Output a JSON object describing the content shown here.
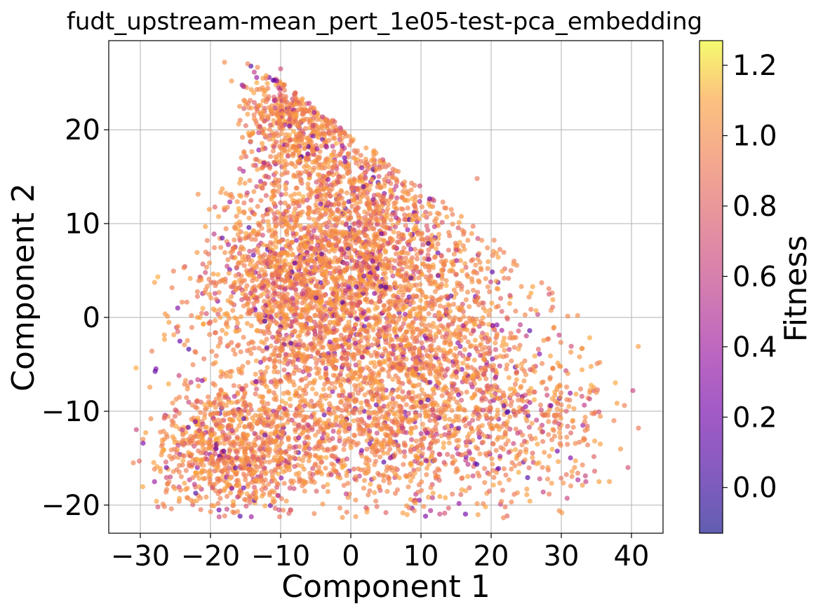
{
  "chart_data": {
    "type": "scatter",
    "title": "fudt_upstream-mean_pert_1e05-test-pca_embedding",
    "xlabel": "Component 1",
    "ylabel": "Component 2",
    "xlim": [
      -34.5,
      44.5
    ],
    "ylim": [
      -23.0,
      29.5
    ],
    "x_ticks": [
      -30,
      -20,
      -10,
      0,
      10,
      20,
      30,
      40
    ],
    "x_tick_labels": [
      "−30",
      "−20",
      "−10",
      "0",
      "10",
      "20",
      "30",
      "40"
    ],
    "y_ticks": [
      -20,
      -10,
      0,
      10,
      20
    ],
    "y_tick_labels": [
      "−20",
      "−10",
      "0",
      "10",
      "20"
    ],
    "grid": true,
    "colormap": "plasma",
    "point_alpha": 0.65,
    "colorbar": {
      "label": "Fitness",
      "range": [
        -0.13,
        1.27
      ],
      "ticks": [
        0.0,
        0.2,
        0.4,
        0.6,
        0.8,
        1.0,
        1.2
      ],
      "tick_labels": [
        "0.0",
        "0.2",
        "0.4",
        "0.6",
        "0.8",
        "1.0",
        "1.2"
      ]
    },
    "density_clusters": [
      {
        "center": [
          -8,
          22
        ],
        "spread": [
          4.5,
          3.5
        ],
        "weight": 0.1
      },
      {
        "center": [
          0,
          14
        ],
        "spread": [
          7,
          5
        ],
        "weight": 0.12
      },
      {
        "center": [
          -8,
          3
        ],
        "spread": [
          8,
          5.5
        ],
        "weight": 0.2
      },
      {
        "center": [
          5,
          2
        ],
        "spread": [
          9,
          7
        ],
        "weight": 0.22
      },
      {
        "center": [
          -17,
          -14
        ],
        "spread": [
          5.5,
          3.5
        ],
        "weight": 0.12
      },
      {
        "center": [
          3,
          -12
        ],
        "spread": [
          10,
          4.5
        ],
        "weight": 0.14
      },
      {
        "center": [
          18,
          -6
        ],
        "spread": [
          7,
          6
        ],
        "weight": 0.07
      },
      {
        "center": [
          28,
          -12
        ],
        "spread": [
          6,
          4
        ],
        "weight": 0.03
      }
    ],
    "points": [
      {
        "x": -31,
        "y": -15.5,
        "fitness": 0.95
      },
      {
        "x": -28.5,
        "y": -10.8,
        "fitness": 1.0
      },
      {
        "x": -27.5,
        "y": -20.2,
        "fitness": 0.7
      },
      {
        "x": -18,
        "y": 27.2,
        "fitness": 1.0
      },
      {
        "x": -17,
        "y": 25.2,
        "fitness": 1.05
      },
      {
        "x": 5,
        "y": -20.8,
        "fitness": 0.8
      },
      {
        "x": 41,
        "y": -11.8,
        "fitness": 0.9
      },
      {
        "x": 39.5,
        "y": -16,
        "fitness": 0.7
      },
      {
        "x": 37.5,
        "y": -11,
        "fitness": 0.95
      },
      {
        "x": 18,
        "y": 14.8,
        "fitness": 0.9
      },
      {
        "x": 11,
        "y": -8.8,
        "fitness": 0.05
      },
      {
        "x": -10,
        "y": 26.5,
        "fitness": 0.7
      },
      {
        "x": 33.5,
        "y": -17.5,
        "fitness": 0.6
      },
      {
        "x": 35,
        "y": -8,
        "fitness": 1.0
      },
      {
        "x": -22,
        "y": -9,
        "fitness": 0.8
      },
      {
        "x": 22,
        "y": -20.2,
        "fitness": 0.9
      }
    ]
  }
}
